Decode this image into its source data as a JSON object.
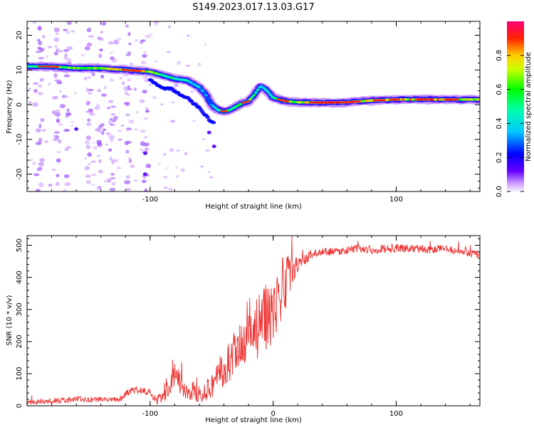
{
  "title": "S149.2023.017.13.03.G17",
  "chart_data": [
    {
      "type": "heatmap",
      "title": "S149.2023.017.13.03.G17",
      "xlabel": "Height of straight line (km)",
      "ylabel": "Frequency (Hz)",
      "xlim": [
        -200,
        168
      ],
      "ylim": [
        -25,
        24
      ],
      "x_ticks": [
        -100,
        100
      ],
      "y_ticks": [
        -20,
        -10,
        0,
        10,
        20
      ],
      "grid": false,
      "colorbar": {
        "label": "Normalized spectral amplitude",
        "range": [
          0,
          1
        ],
        "ticks": [
          0.0,
          0.2,
          0.4,
          0.6,
          0.8
        ]
      },
      "ridge": {
        "x": [
          -200,
          -180,
          -160,
          -140,
          -120,
          -100,
          -90,
          -80,
          -70,
          -60,
          -55,
          -50,
          -45,
          -40,
          -35,
          -30,
          -25,
          -20,
          -15,
          -10,
          -5,
          0,
          10,
          20,
          40,
          60,
          80,
          100,
          120,
          140,
          168
        ],
        "y": [
          11,
          11,
          10.5,
          10.5,
          10,
          9.5,
          8.5,
          7.5,
          7,
          5,
          3,
          0,
          -1.5,
          -2,
          -1.5,
          -0.5,
          0.5,
          1,
          3,
          5.5,
          4,
          2,
          1,
          0.7,
          0.6,
          0.7,
          1.2,
          1.5,
          1.5,
          1.5,
          1.5
        ],
        "amplitude": [
          0.55,
          0.7,
          0.7,
          0.65,
          0.9,
          0.8,
          0.5,
          0.5,
          0.45,
          0.4,
          0.35,
          0.35,
          0.45,
          0.7,
          0.5,
          0.6,
          0.5,
          0.7,
          0.5,
          0.4,
          0.5,
          0.6,
          0.8,
          0.7,
          0.9,
          0.9,
          0.8,
          0.85,
          0.85,
          0.85,
          0.7
        ]
      }
    },
    {
      "type": "line",
      "xlabel": "Height of straight line (km)",
      "ylabel": "SNR (10 * v/v)",
      "xlim": [
        -200,
        168
      ],
      "ylim": [
        0,
        530
      ],
      "x_ticks": [
        -100,
        0,
        100
      ],
      "y_ticks": [
        0,
        100,
        200,
        300,
        400,
        500
      ],
      "grid": false,
      "series": [
        {
          "color": "#ee3333",
          "x": [
            -200,
            -180,
            -160,
            -140,
            -125,
            -115,
            -110,
            -100,
            -95,
            -90,
            -85,
            -80,
            -75,
            -70,
            -65,
            -60,
            -55,
            -50,
            -45,
            -40,
            -35,
            -30,
            -25,
            -20,
            -15,
            -10,
            -5,
            0,
            5,
            10,
            15,
            20,
            25,
            30,
            40,
            50,
            60,
            70,
            80,
            90,
            100,
            110,
            120,
            130,
            140,
            150,
            160,
            168
          ],
          "y": [
            10,
            15,
            20,
            20,
            20,
            50,
            50,
            40,
            15,
            30,
            60,
            100,
            60,
            40,
            45,
            40,
            50,
            60,
            100,
            110,
            140,
            160,
            180,
            200,
            230,
            250,
            280,
            300,
            350,
            380,
            420,
            440,
            450,
            470,
            480,
            480,
            485,
            490,
            485,
            490,
            490,
            490,
            490,
            485,
            490,
            480,
            475,
            470
          ],
          "noise": [
            8,
            8,
            10,
            8,
            8,
            12,
            12,
            10,
            12,
            25,
            35,
            50,
            35,
            30,
            30,
            30,
            35,
            40,
            55,
            60,
            70,
            80,
            90,
            95,
            100,
            110,
            110,
            110,
            100,
            90,
            45,
            25,
            18,
            15,
            12,
            12,
            12,
            12,
            12,
            14,
            14,
            12,
            12,
            12,
            12,
            12,
            12,
            12
          ]
        }
      ]
    }
  ]
}
